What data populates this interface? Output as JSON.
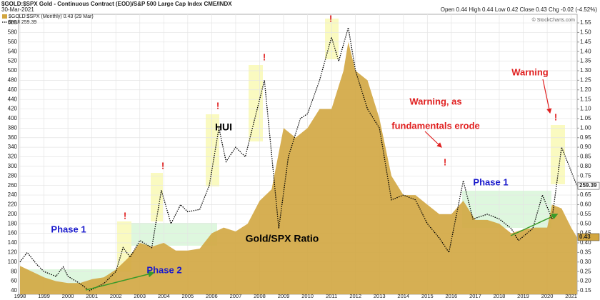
{
  "chart_data": {
    "type": "line",
    "title": "$GOLD:$SPX Gold - Continuous Contract (EOD)/S&P 500 Large Cap Index CME/INDX",
    "date": "30-Mar-2021",
    "quote": "Open 0.44 High 0.44 Low 0.42 Close 0.43 Chg -0.02 (-4.52%)",
    "credit": "© StockCharts.com",
    "grid": true,
    "xlim": [
      1997.94,
      2021.25
    ],
    "xticks": [
      1998,
      1999,
      2000,
      2001,
      2002,
      2003,
      2004,
      2005,
      2006,
      2007,
      2008,
      2009,
      2010,
      2011,
      2012,
      2013,
      2014,
      2015,
      2016,
      2017,
      2018,
      2019,
      2020,
      2021
    ],
    "ylim": [
      32.5,
      618
    ],
    "yticks": [
      40,
      60,
      80,
      100,
      120,
      140,
      160,
      180,
      200,
      220,
      240,
      260,
      280,
      300,
      320,
      340,
      360,
      380,
      400,
      420,
      440,
      460,
      480,
      500,
      520,
      540,
      560,
      580,
      600
    ],
    "y2lim": [
      0.13125,
      1.595
    ],
    "y2ticks": [
      {
        "value": 0.15,
        "label": "0.15"
      },
      {
        "value": 0.2,
        "label": "0.20"
      },
      {
        "value": 0.25,
        "label": "0.25"
      },
      {
        "value": 0.3,
        "label": "0.30"
      },
      {
        "value": 0.35,
        "label": "0.35"
      },
      {
        "value": 0.4,
        "label": "0.40"
      },
      {
        "value": 0.45,
        "label": "0.45"
      },
      {
        "value": 0.5,
        "label": "0.50"
      },
      {
        "value": 0.55,
        "label": "0.55"
      },
      {
        "value": 0.6,
        "label": "0.60"
      },
      {
        "value": 0.65,
        "label": "0.65"
      },
      {
        "value": 0.7,
        "label": "0.70"
      },
      {
        "value": 0.75,
        "label": "0.75"
      },
      {
        "value": 0.8,
        "label": "0.80"
      },
      {
        "value": 0.85,
        "label": "0.85"
      },
      {
        "value": 0.9,
        "label": "0.90"
      },
      {
        "value": 0.95,
        "label": "0.95"
      },
      {
        "value": 1.0,
        "label": "1.00"
      },
      {
        "value": 1.05,
        "label": "1.05"
      },
      {
        "value": 1.1,
        "label": "1.10"
      },
      {
        "value": 1.15,
        "label": "1.15"
      },
      {
        "value": 1.2,
        "label": "1.20"
      },
      {
        "value": 1.25,
        "label": "1.25"
      },
      {
        "value": 1.3,
        "label": "1.30"
      },
      {
        "value": 1.35,
        "label": "1.35"
      },
      {
        "value": 1.4,
        "label": "1.40"
      },
      {
        "value": 1.45,
        "label": "1.45"
      },
      {
        "value": 1.5,
        "label": "1.50"
      },
      {
        "value": 1.55,
        "label": "1.55"
      }
    ],
    "series": [
      {
        "name": "$GOLD:$SPX (Monthly) 0.43 (29 Mar)",
        "color": "#d2a640",
        "style": "area",
        "axis": "y2",
        "end_label": "0.43",
        "x": [
          1998,
          1998.5,
          1999,
          1999.5,
          2000,
          2000.5,
          2001,
          2001.5,
          2002,
          2002.5,
          2003,
          2003.5,
          2004,
          2004.5,
          2005,
          2005.5,
          2006,
          2006.5,
          2007,
          2007.5,
          2008,
          2008.5,
          2009,
          2009.5,
          2010,
          2010.5,
          2011,
          2011.5,
          2011.7,
          2012,
          2012.5,
          2013,
          2013.5,
          2014,
          2014.5,
          2015,
          2015.5,
          2016,
          2016.5,
          2017,
          2017.5,
          2018,
          2018.5,
          2019,
          2019.5,
          2020,
          2020.2,
          2020.6,
          2021,
          2021.24
        ],
        "values": [
          0.28,
          0.25,
          0.22,
          0.2,
          0.19,
          0.19,
          0.21,
          0.22,
          0.26,
          0.32,
          0.4,
          0.38,
          0.4,
          0.36,
          0.36,
          0.37,
          0.45,
          0.48,
          0.46,
          0.5,
          0.62,
          0.68,
          1.0,
          0.95,
          1.0,
          1.1,
          1.1,
          1.3,
          1.45,
          1.3,
          1.25,
          1.05,
          0.75,
          0.65,
          0.65,
          0.6,
          0.55,
          0.55,
          0.62,
          0.52,
          0.52,
          0.5,
          0.45,
          0.47,
          0.48,
          0.48,
          0.6,
          0.58,
          0.48,
          0.43
        ]
      },
      {
        "name": "$HUI 259.39",
        "color": "#000000",
        "style": "dotted",
        "end_label": "259.39",
        "x": [
          1998,
          1998.3,
          1998.7,
          1999,
          1999.5,
          1999.8,
          2000,
          2000.5,
          2000.9,
          2001.5,
          2002,
          2002.3,
          2002.6,
          2003,
          2003.5,
          2003.9,
          2004.3,
          2004.7,
          2005,
          2005.5,
          2005.9,
          2006.3,
          2006.6,
          2007,
          2007.4,
          2007.7,
          2008.2,
          2008.8,
          2009.2,
          2009.7,
          2010,
          2010.5,
          2011,
          2011.3,
          2011.7,
          2012,
          2012.5,
          2013,
          2013.5,
          2014,
          2014.5,
          2015,
          2015.5,
          2015.9,
          2016.5,
          2016.9,
          2017.5,
          2018,
          2018.5,
          2018.8,
          2019.4,
          2019.8,
          2020.2,
          2020.6,
          2021,
          2021.24
        ],
        "values": [
          100,
          120,
          95,
          80,
          70,
          90,
          70,
          55,
          40,
          55,
          80,
          130,
          110,
          145,
          130,
          250,
          180,
          220,
          205,
          210,
          260,
          380,
          310,
          340,
          320,
          380,
          480,
          170,
          320,
          400,
          410,
          480,
          570,
          520,
          590,
          500,
          420,
          380,
          230,
          240,
          230,
          180,
          150,
          120,
          270,
          190,
          200,
          190,
          170,
          145,
          170,
          240,
          190,
          340,
          290,
          259.39
        ]
      }
    ],
    "annotations": [
      "HUI",
      "Gold/SPX Ratio",
      "Phase 1",
      "Phase 2",
      "Phase 1",
      "Warning, as",
      "fundamentals erode",
      "Warning",
      "!",
      "!",
      "!",
      "!",
      "!",
      "!",
      "!"
    ]
  }
}
